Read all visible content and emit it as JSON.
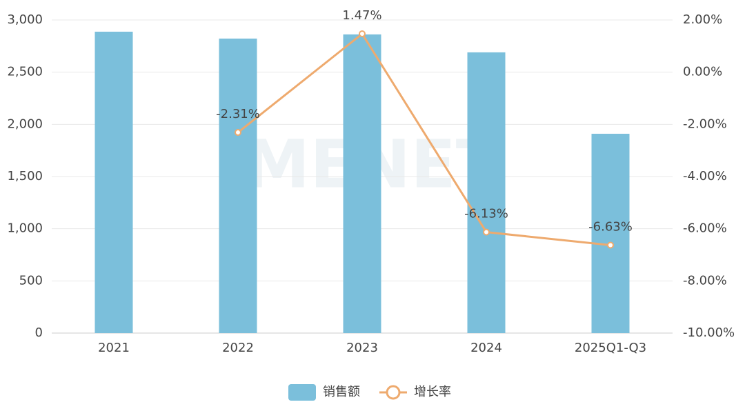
{
  "chart_data": {
    "type": "bar_line",
    "watermark": "MENET",
    "categories": [
      "2021",
      "2022",
      "2023",
      "2024",
      "2025Q1-Q3"
    ],
    "series": [
      {
        "name": "销售额",
        "type": "bar",
        "color": "#7bbfdb",
        "values": [
          2888,
          2822,
          2862,
          2690,
          1910
        ]
      },
      {
        "name": "增长率",
        "type": "line",
        "axis": "y2",
        "color": "#eeaa6e",
        "values": [
          null,
          -2.31,
          1.47,
          -6.13,
          -6.63
        ],
        "value_labels": [
          null,
          "-2.31%",
          "1.47%",
          "-6.13%",
          "-6.63%"
        ]
      }
    ],
    "ylim": [
      0,
      3000
    ],
    "yticks": [
      0,
      500,
      {
        "value": 1000,
        "label": "1,000"
      },
      {
        "value": 1500,
        "label": "1,500"
      },
      {
        "value": 2000,
        "label": "2,000"
      },
      {
        "value": 2500,
        "label": "2,500"
      },
      {
        "value": 3000,
        "label": "3,000"
      }
    ],
    "y2lim": [
      -10,
      2
    ],
    "y2ticks": [
      {
        "value": -10,
        "label": "-10.00%"
      },
      {
        "value": -8,
        "label": "-8.00%"
      },
      {
        "value": -6,
        "label": "-6.00%"
      },
      {
        "value": -4,
        "label": "-4.00%"
      },
      {
        "value": -2,
        "label": "-2.00%"
      },
      {
        "value": 0,
        "label": "0.00%"
      },
      {
        "value": 2,
        "label": "2.00%"
      }
    ],
    "grid": true,
    "legend": "bottom"
  }
}
